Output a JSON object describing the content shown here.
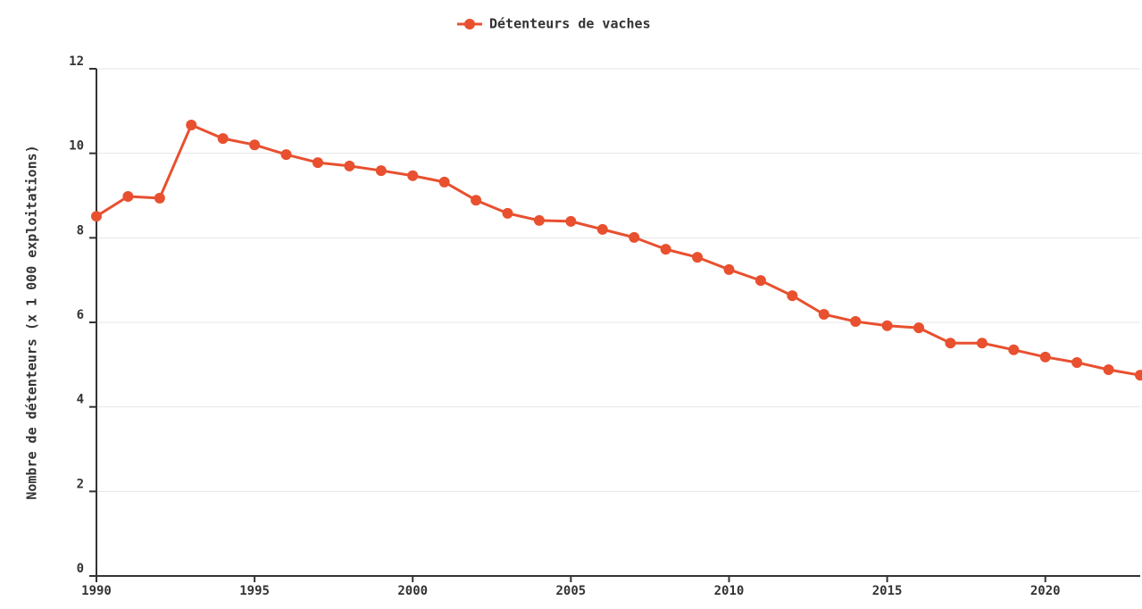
{
  "chart_data": {
    "type": "line",
    "y_label": "Nombre de détenteurs (x 1 000 exploitations)",
    "x": [
      1990,
      1991,
      1992,
      1993,
      1994,
      1995,
      1996,
      1997,
      1998,
      1999,
      2000,
      2001,
      2002,
      2003,
      2004,
      2005,
      2006,
      2007,
      2008,
      2009,
      2010,
      2011,
      2012,
      2013,
      2014,
      2015,
      2016,
      2017,
      2018,
      2019,
      2020,
      2021,
      2022,
      2023
    ],
    "series": [
      {
        "name": "Détenteurs de vaches",
        "color": "#e8502f",
        "values": [
          8.51,
          8.98,
          8.94,
          10.67,
          10.35,
          10.2,
          9.97,
          9.78,
          9.7,
          9.59,
          9.47,
          9.32,
          8.89,
          8.58,
          8.41,
          8.39,
          8.2,
          8.01,
          7.73,
          7.54,
          7.25,
          6.99,
          6.63,
          6.19,
          6.02,
          5.92,
          5.87,
          5.51,
          5.51,
          5.35,
          5.18,
          5.05,
          4.88,
          4.75
        ]
      }
    ],
    "xlim": [
      1990,
      2023
    ],
    "xticks": [
      1990,
      1995,
      2000,
      2005,
      2010,
      2015,
      2020
    ],
    "ylim": [
      0,
      12
    ],
    "yticks": [
      0,
      2,
      4,
      6,
      8,
      10,
      12
    ],
    "grid": true,
    "legend": "top"
  }
}
